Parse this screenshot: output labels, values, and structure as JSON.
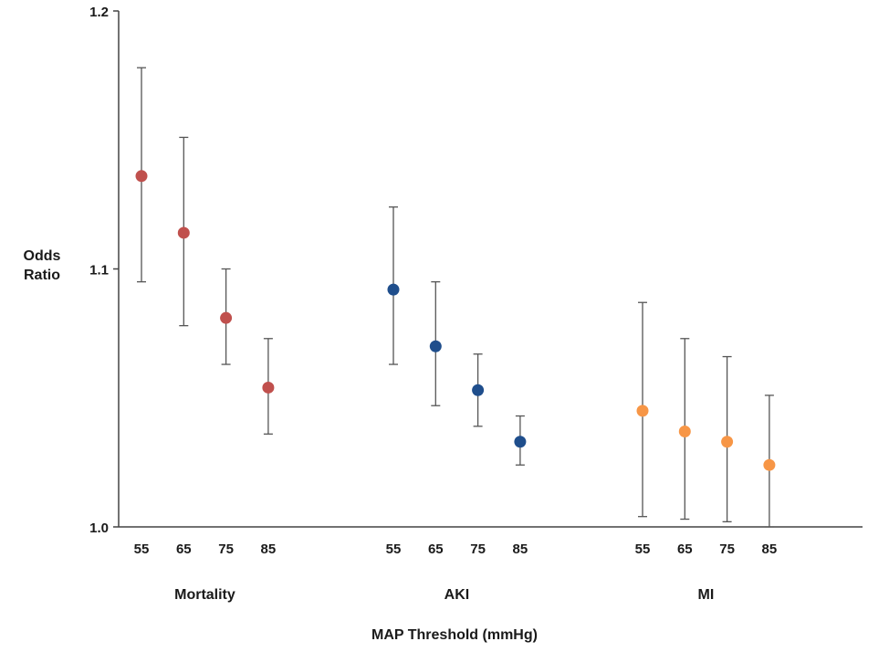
{
  "chart_data": {
    "type": "scatter",
    "title": "",
    "xlabel": "MAP Threshold (mmHg)",
    "ylabel_lines": [
      "Odds",
      "Ratio"
    ],
    "ylim": [
      1.0,
      1.2
    ],
    "yticks": [
      1.0,
      1.1,
      1.2
    ],
    "ytick_labels": [
      "1.0",
      "1.1",
      "1.2"
    ],
    "error_bars": true,
    "grid": false,
    "legend": "none",
    "groups": [
      {
        "name": "Mortality",
        "color": "#c0504d",
        "thresholds": [
          "55",
          "65",
          "75",
          "85"
        ],
        "values": [
          1.136,
          1.114,
          1.081,
          1.054
        ],
        "lower": [
          1.095,
          1.078,
          1.063,
          1.036
        ],
        "upper": [
          1.178,
          1.151,
          1.1,
          1.073
        ]
      },
      {
        "name": "AKI",
        "color": "#1f4e8c",
        "thresholds": [
          "55",
          "65",
          "75",
          "85"
        ],
        "values": [
          1.092,
          1.07,
          1.053,
          1.033
        ],
        "lower": [
          1.063,
          1.047,
          1.039,
          1.024
        ],
        "upper": [
          1.124,
          1.095,
          1.067,
          1.043
        ]
      },
      {
        "name": "MI",
        "color": "#f79646",
        "thresholds": [
          "55",
          "65",
          "75",
          "85"
        ],
        "values": [
          1.045,
          1.037,
          1.033,
          1.024
        ],
        "lower": [
          1.004,
          1.003,
          1.002,
          1.0
        ],
        "upper": [
          1.087,
          1.073,
          1.066,
          1.051
        ]
      }
    ]
  }
}
